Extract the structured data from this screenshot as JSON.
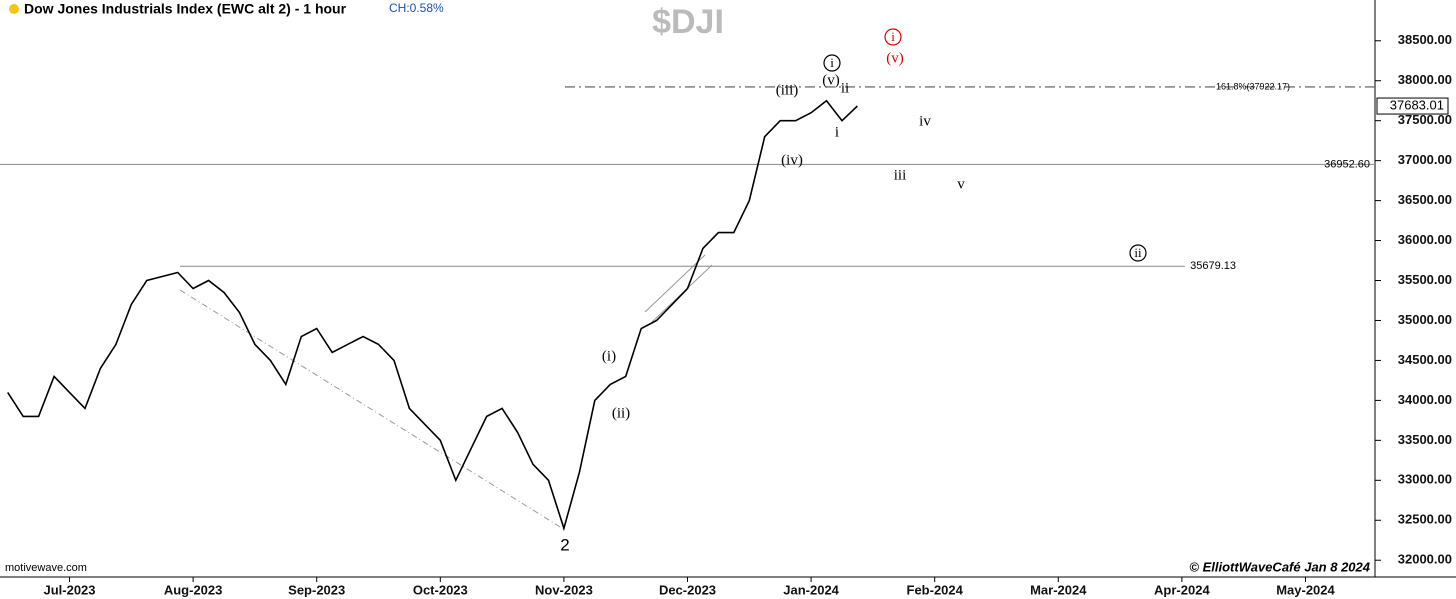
{
  "chart_data": {
    "type": "line",
    "title": "Dow Jones Industrials Index (EWC alt 2) - 1 hour",
    "change_label": "CH:0.58%",
    "symbol": "$DJI",
    "source": "motivewave.com",
    "credit": "© ElliottWaveCafé Jan 8 2024",
    "categories": [
      null,
      null,
      null,
      null,
      "Jul-2023",
      null,
      null,
      null,
      null,
      null,
      null,
      null,
      "Aug-2023",
      null,
      null,
      null,
      null,
      null,
      null,
      null,
      "Sep-2023",
      null,
      null,
      null,
      null,
      null,
      null,
      null,
      "Oct-2023",
      null,
      null,
      null,
      null,
      null,
      null,
      null,
      "Nov-2023",
      null,
      null,
      null,
      null,
      null,
      null,
      null,
      "Dec-2023",
      null,
      null,
      null,
      null,
      null,
      null,
      null,
      "Jan-2024",
      null,
      null,
      null,
      null,
      null,
      null,
      null,
      "Feb-2024",
      null,
      null,
      null,
      null,
      null,
      null,
      null,
      "Mar-2024",
      null,
      null,
      null,
      null,
      null,
      null,
      null,
      "Apr-2024",
      null,
      null,
      null,
      null,
      null,
      null,
      null,
      "May-2024",
      null,
      null,
      null,
      null
    ],
    "series": [
      {
        "name": "$DJI",
        "color": "#000000",
        "values": [
          34100,
          33800,
          33800,
          34300,
          34100,
          33900,
          34400,
          34700,
          35200,
          35500,
          35550,
          35600,
          35400,
          35500,
          35350,
          35100,
          34700,
          34500,
          34200,
          34800,
          34900,
          34600,
          34700,
          34800,
          34700,
          34500,
          33900,
          33700,
          33500,
          33000,
          33400,
          33800,
          33900,
          33600,
          33200,
          33000,
          32400,
          33100,
          34000,
          34200,
          34300,
          34900,
          35000,
          35200,
          35400,
          35900,
          36100,
          36100,
          36500,
          37300,
          37500,
          37500,
          37600,
          37750,
          37500,
          37683,
          null,
          null,
          null,
          null,
          null,
          null,
          null,
          null,
          null,
          null,
          null,
          null,
          null,
          null,
          null,
          null,
          null,
          null,
          null,
          null,
          null,
          null,
          null,
          null,
          null,
          null,
          null,
          null,
          null,
          null,
          null,
          null,
          null
        ]
      }
    ],
    "last_price": {
      "value": 37683.01,
      "label": "37683.01"
    },
    "ylim": [
      31790,
      39010
    ],
    "yticks": [
      {
        "value": 32000,
        "label": "32000.00"
      },
      {
        "value": 32500,
        "label": "32500.00"
      },
      {
        "value": 33000,
        "label": "33000.00"
      },
      {
        "value": 33500,
        "label": "33500.00"
      },
      {
        "value": 34000,
        "label": "34000.00"
      },
      {
        "value": 34500,
        "label": "34500.00"
      },
      {
        "value": 35000,
        "label": "35000.00"
      },
      {
        "value": 35500,
        "label": "35500.00"
      },
      {
        "value": 36000,
        "label": "36000.00"
      },
      {
        "value": 36500,
        "label": "36500.00"
      },
      {
        "value": 37000,
        "label": "37000.00"
      },
      {
        "value": 37500,
        "label": "37500.00"
      },
      {
        "value": 38000,
        "label": "38000.00"
      },
      {
        "value": 38500,
        "label": "38500.00"
      }
    ],
    "reference_lines": [
      {
        "value": 37922.17,
        "label": "161.8%(37922.17)"
      },
      {
        "value": 36952.6,
        "label": "36952.60"
      },
      {
        "value": 35679.13,
        "label": "35679.13"
      }
    ],
    "annotations": [
      {
        "text": "(i)",
        "color": "#000000"
      },
      {
        "text": "(ii)",
        "color": "#000000"
      },
      {
        "text": "(iii)",
        "color": "#000000"
      },
      {
        "text": "(iv)",
        "color": "#000000"
      },
      {
        "text": "(v)",
        "color": "#000000"
      },
      {
        "text": "i",
        "color": "#000000"
      },
      {
        "text": "ii",
        "color": "#000000"
      },
      {
        "text": "iii",
        "color": "#000000"
      },
      {
        "text": "iv",
        "color": "#000000"
      },
      {
        "text": "v",
        "color": "#000000"
      },
      {
        "text": "2",
        "color": "#000000"
      },
      {
        "text": "i",
        "color": "#000000"
      },
      {
        "text": "i",
        "color": "#dd0000"
      },
      {
        "text": "(v)",
        "color": "#dd0000"
      },
      {
        "text": "ii",
        "color": "#000000"
      }
    ]
  }
}
